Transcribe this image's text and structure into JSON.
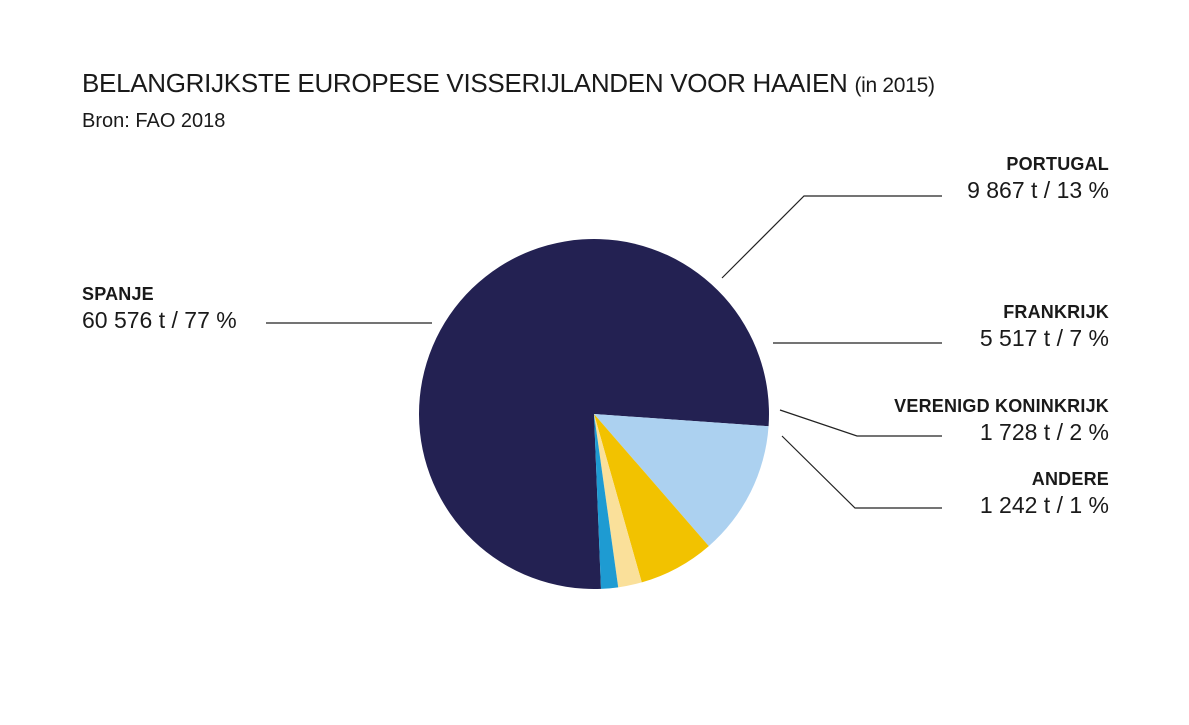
{
  "title": "BELANGRIJKSTE EUROPESE VISSERIJLANDEN VOOR HAAIEN",
  "title_year": "(in 2015)",
  "source": "Bron: FAO 2018",
  "chart_data": {
    "type": "pie",
    "title": "BELANGRIJKSTE EUROPESE VISSERIJLANDEN VOOR HAAIEN (in 2015)",
    "slices": [
      {
        "name": "SPANJE",
        "value": 60576,
        "percent": 77,
        "label": "60 576 t / 77 %",
        "color": "#232152"
      },
      {
        "name": "PORTUGAL",
        "value": 9867,
        "percent": 13,
        "label": "9 867 t / 13 %",
        "color": "#acd1f0"
      },
      {
        "name": "FRANKRIJK",
        "value": 5517,
        "percent": 7,
        "label": "5 517 t / 7 %",
        "color": "#f2c200"
      },
      {
        "name": "VERENIGD KONINKRIJK",
        "value": 1728,
        "percent": 2,
        "label": "1 728 t / 2 %",
        "color": "#fae09a"
      },
      {
        "name": "ANDERE",
        "value": 1242,
        "percent": 1,
        "label": "1 242 t / 1 %",
        "color": "#1e9bd2"
      }
    ]
  }
}
